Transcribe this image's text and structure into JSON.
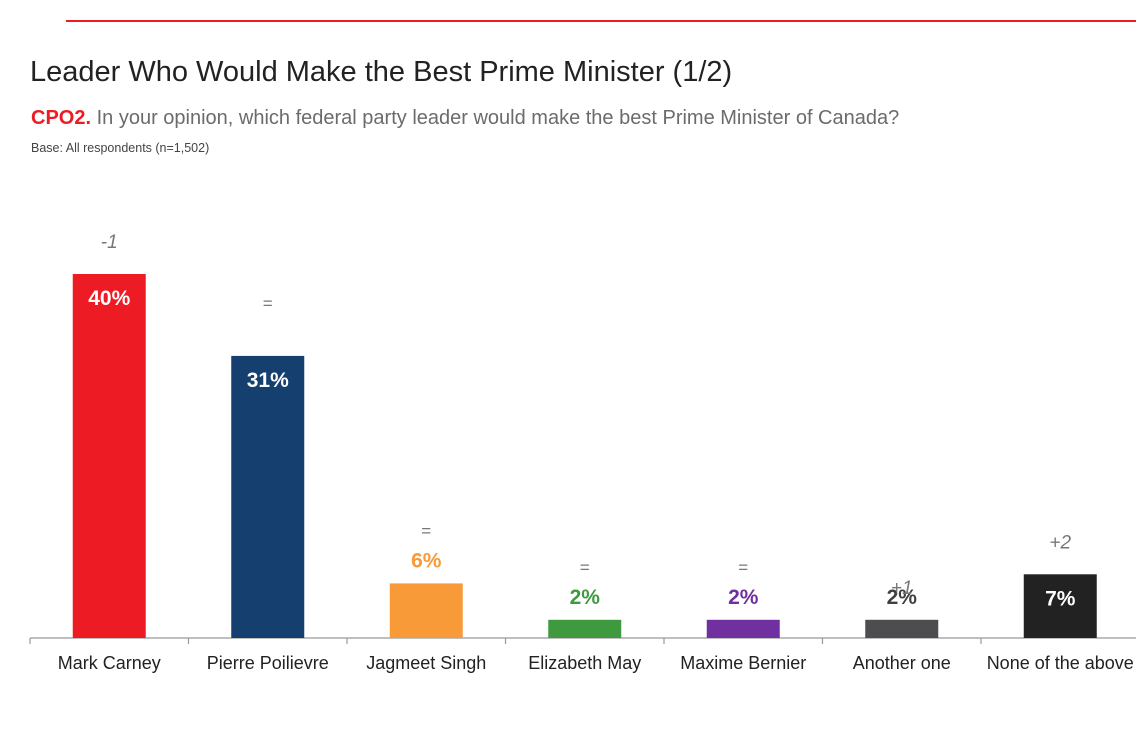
{
  "header": {
    "title": "Leader Who Would Make the Best Prime Minister (1/2)",
    "question_code": "CPO2.",
    "question_text": "In your opinion, which federal party leader would make the best Prime Minister of Canada?",
    "base": "Base: All respondents (n=1,502)"
  },
  "colors": {
    "accent": "#ed1c24",
    "title": "#222222",
    "question": "#6b6b6b",
    "change": "#777777",
    "axis": "#999999"
  },
  "chart_data": {
    "type": "bar",
    "categories": [
      "Mark Carney",
      "Pierre Poilievre",
      "Jagmeet Singh",
      "Elizabeth May",
      "Maxime Bernier",
      "Another one",
      "None of the above"
    ],
    "values": [
      40,
      31,
      6,
      2,
      2,
      2,
      7
    ],
    "value_labels": [
      "40%",
      "31%",
      "6%",
      "2%",
      "2%",
      "2%",
      "7%"
    ],
    "changes": [
      "-1",
      "=",
      "=",
      "=",
      "=",
      "+1",
      "+2"
    ],
    "bar_colors": [
      "#ed1c24",
      "#143f6e",
      "#f99a38",
      "#3f9a3f",
      "#7030a0",
      "#4d4d4f",
      "#222222"
    ],
    "label_positions": [
      "inside",
      "inside",
      "above",
      "above",
      "above",
      "above",
      "inside"
    ],
    "label_colors": [
      "#ffffff",
      "#ffffff",
      "#f99a38",
      "#3f9a3f",
      "#7030a0",
      "#404040",
      "#ffffff"
    ],
    "ylim": [
      0,
      40
    ],
    "grid": false,
    "legend": "none"
  }
}
